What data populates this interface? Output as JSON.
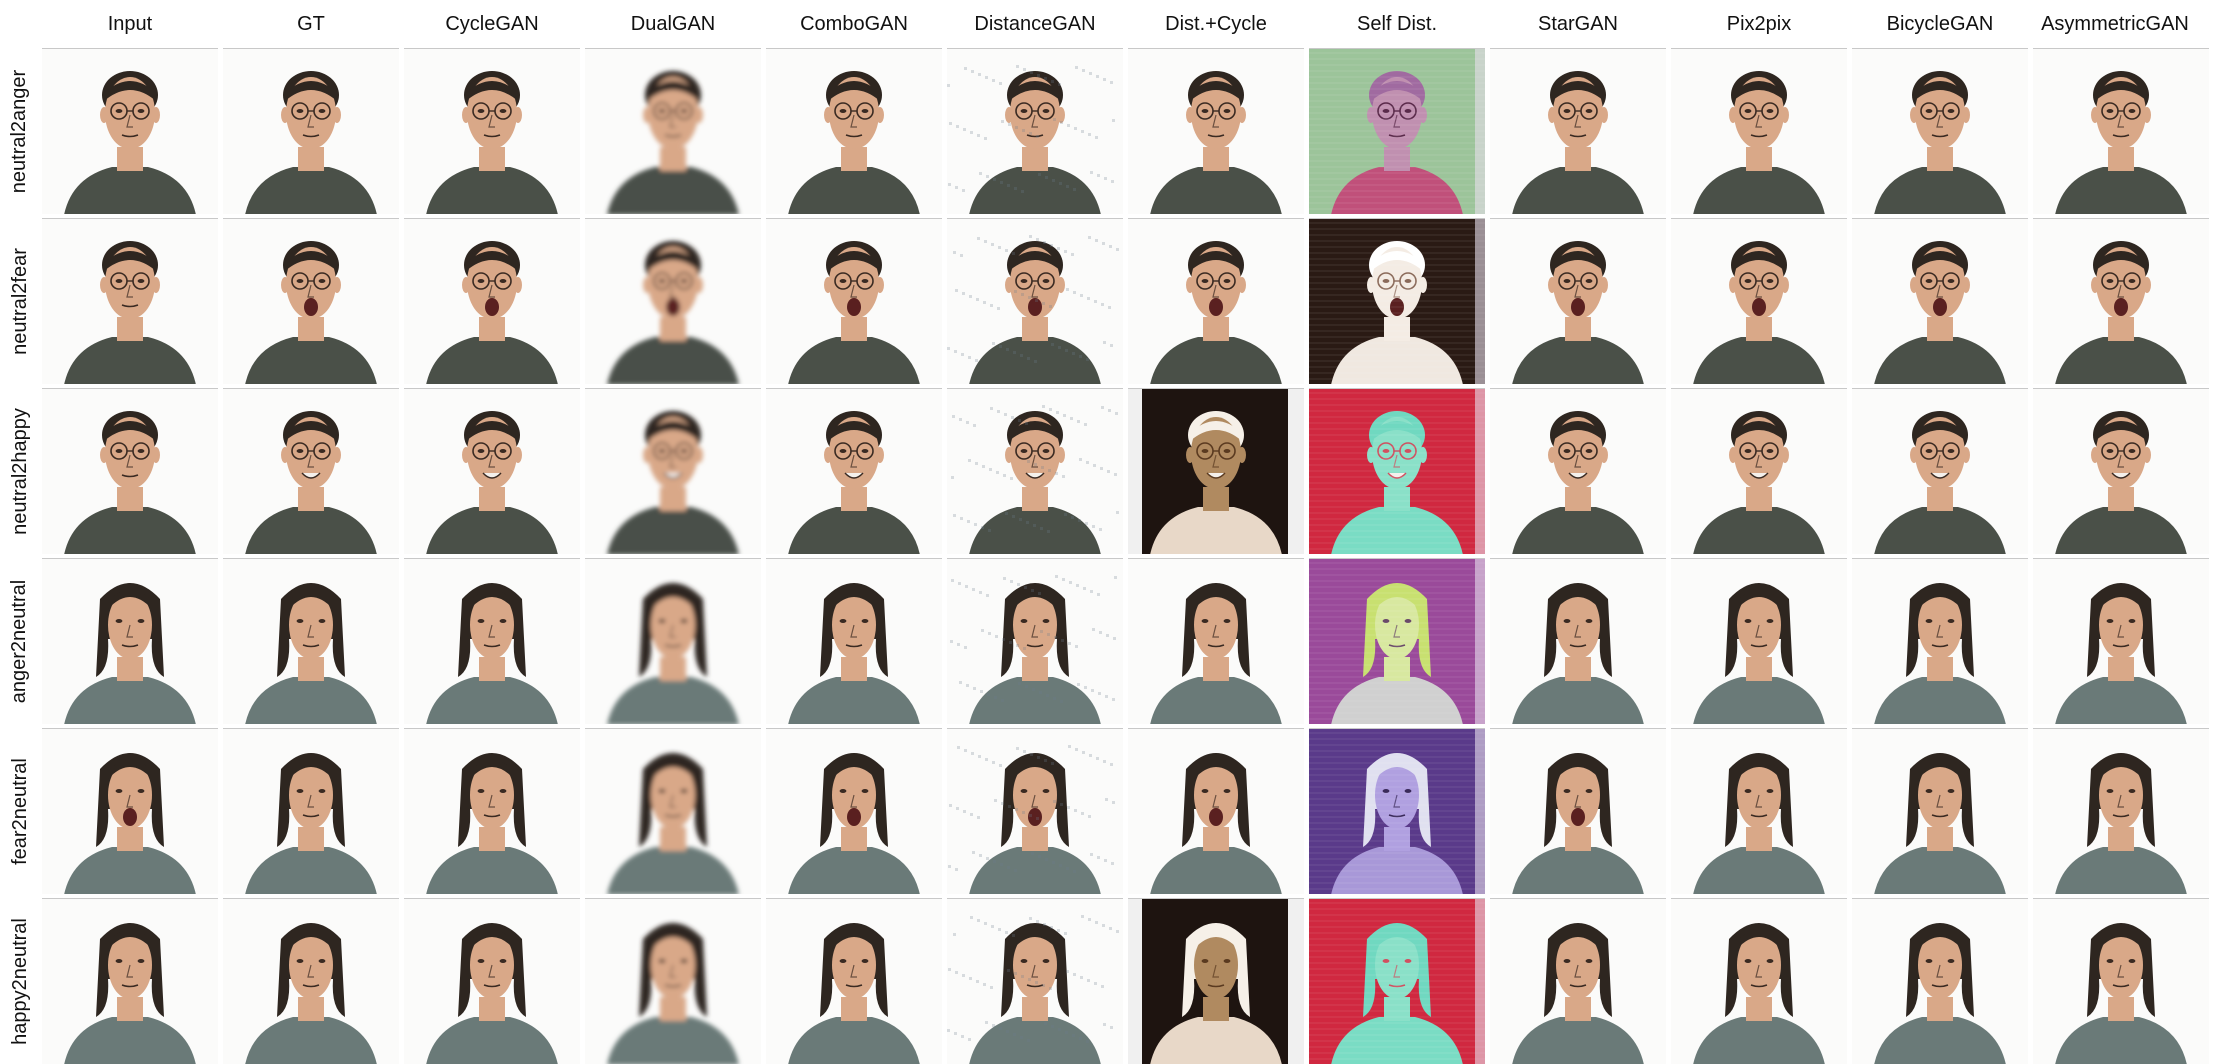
{
  "columns": [
    {
      "label": "Input"
    },
    {
      "label": "GT"
    },
    {
      "label": "CycleGAN"
    },
    {
      "label": "DualGAN"
    },
    {
      "label": "ComboGAN"
    },
    {
      "label": "DistanceGAN"
    },
    {
      "label": "Dist.+Cycle"
    },
    {
      "label": "Self Dist."
    },
    {
      "label": "StarGAN"
    },
    {
      "label": "Pix2pix"
    },
    {
      "label": "BicycleGAN"
    },
    {
      "label": "AsymmetricGAN"
    }
  ],
  "rows": [
    {
      "label": "neutral2anger",
      "subject": "man-glasses",
      "gt_expression": "anger"
    },
    {
      "label": "neutral2fear",
      "subject": "man-glasses",
      "gt_expression": "fear"
    },
    {
      "label": "neutral2happy",
      "subject": "man-glasses",
      "gt_expression": "happy"
    },
    {
      "label": "anger2neutral",
      "subject": "woman",
      "gt_expression": "neutral"
    },
    {
      "label": "fear2neutral",
      "subject": "woman",
      "gt_expression": "neutral"
    },
    {
      "label": "happy2neutral",
      "subject": "woman",
      "gt_expression": "neutral"
    }
  ],
  "colors": {
    "skin": "#d9a888",
    "hair": "#2e2620",
    "man_shirt": "#4a5048",
    "woman_shirt": "#6a7a78",
    "background": "#fbfbfa",
    "self_dist_green": "#9cc49a",
    "self_dist_black": "#2a1a14",
    "self_dist_red": "#d02840",
    "self_dist_purple": "#9a4a9a",
    "self_dist_violet": "#5a3a8a",
    "dist_cycle_black": "#1e1410"
  }
}
